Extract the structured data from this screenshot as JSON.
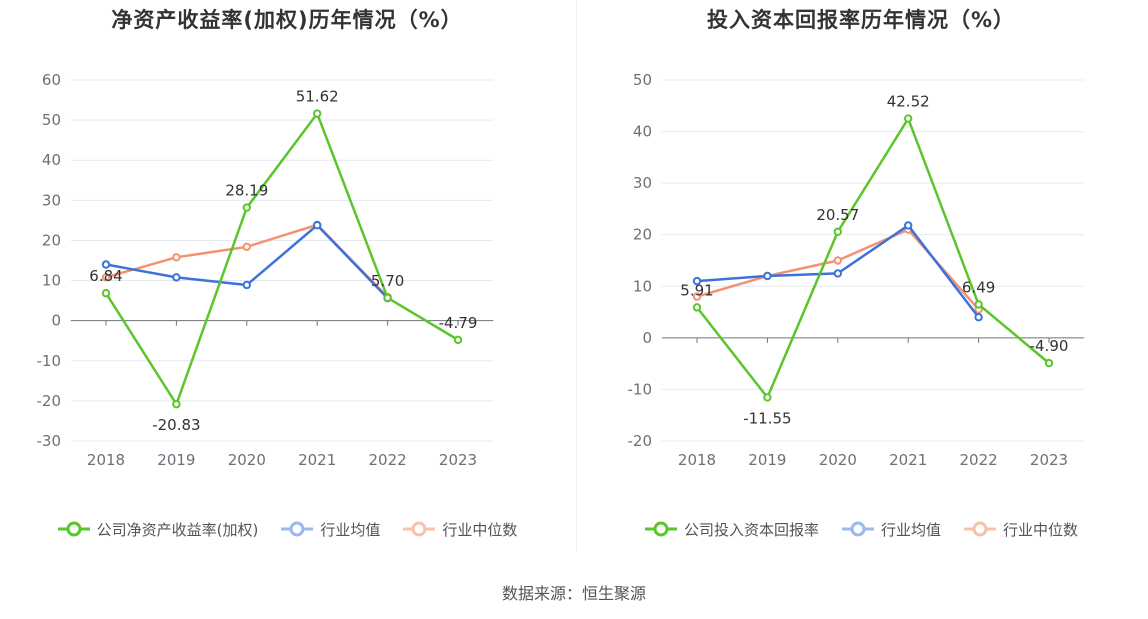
{
  "footer": {
    "source": "数据来源：恒生聚源"
  },
  "colors": {
    "company": "#5bc52c",
    "avg": "#3c72dc",
    "median": "#f49270"
  },
  "chart_data": [
    {
      "type": "line",
      "title": "净资产收益率(加权)历年情况（%）",
      "x": [
        "2018",
        "2019",
        "2020",
        "2021",
        "2022",
        "2023"
      ],
      "ylim": [
        -30,
        60
      ],
      "yticks": [
        -30,
        -20,
        -10,
        0,
        10,
        20,
        30,
        40,
        50,
        60
      ],
      "ytick_labels": [
        "-30",
        "-20",
        "-10",
        "0",
        "10",
        "20",
        "30",
        "40",
        "50",
        "60"
      ],
      "grid": true,
      "legend": "bottom",
      "series": [
        {
          "name": "公司净资产收益率(加权)",
          "color": "#5bc52c",
          "values": [
            6.84,
            -20.83,
            28.19,
            51.62,
            5.7,
            -4.79
          ],
          "labels": [
            "6.84",
            "-20.83",
            "28.19",
            "51.62",
            "5.70",
            "-4.79"
          ]
        },
        {
          "name": "行业均值",
          "color": "#3c72dc",
          "values": [
            14.0,
            10.8,
            8.9,
            23.8,
            5.6,
            null
          ]
        },
        {
          "name": "行业中位数",
          "color": "#f49270",
          "values": [
            10.8,
            15.8,
            18.4,
            23.9,
            5.9,
            null
          ]
        }
      ]
    },
    {
      "type": "line",
      "title": "投入资本回报率历年情况（%）",
      "x": [
        "2018",
        "2019",
        "2020",
        "2021",
        "2022",
        "2023"
      ],
      "ylim": [
        -20,
        50
      ],
      "yticks": [
        -20,
        -10,
        0,
        10,
        20,
        30,
        40,
        50
      ],
      "ytick_labels": [
        "-20",
        "-10",
        "0",
        "10",
        "20",
        "30",
        "40",
        "50"
      ],
      "grid": true,
      "legend": "bottom",
      "series": [
        {
          "name": "公司投入资本回报率",
          "color": "#5bc52c",
          "values": [
            5.91,
            -11.55,
            20.57,
            42.52,
            6.49,
            -4.9
          ],
          "labels": [
            "5.91",
            "-11.55",
            "20.57",
            "42.52",
            "6.49",
            "-4.90"
          ]
        },
        {
          "name": "行业均值",
          "color": "#3c72dc",
          "values": [
            11.0,
            12.0,
            12.5,
            21.8,
            4.0,
            null
          ]
        },
        {
          "name": "行业中位数",
          "color": "#f49270",
          "values": [
            8.0,
            12.0,
            15.0,
            21.0,
            5.5,
            null
          ]
        }
      ]
    }
  ]
}
